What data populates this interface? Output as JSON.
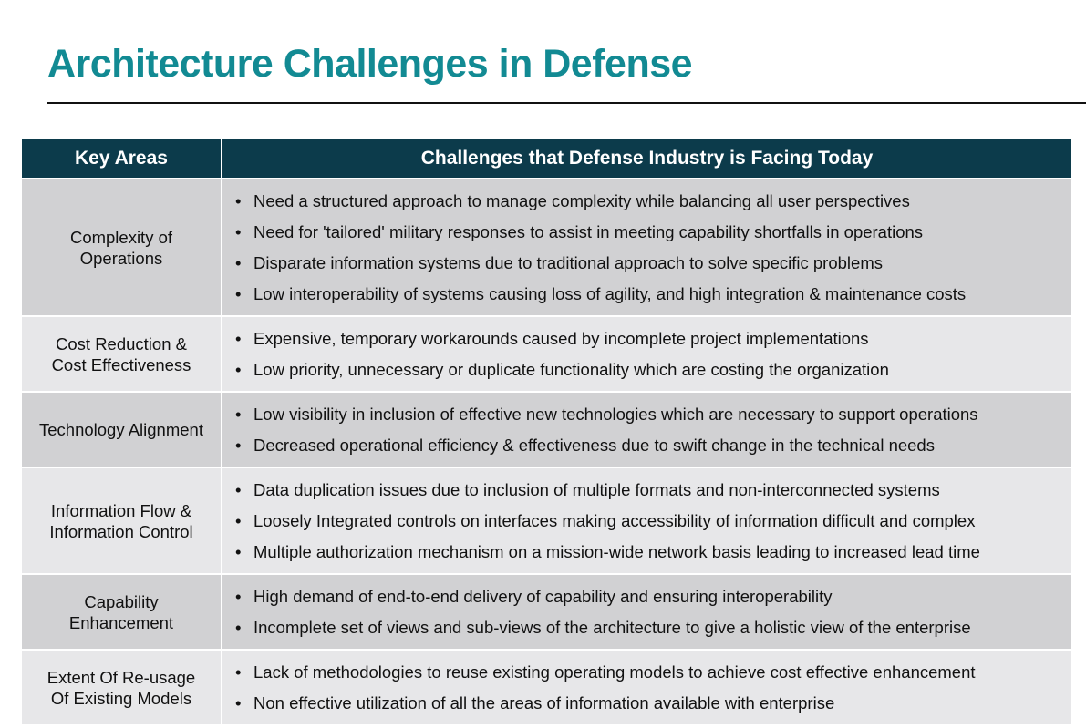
{
  "page": {
    "title": "Architecture Challenges in Defense"
  },
  "table": {
    "headers": {
      "key_areas": "Key Areas",
      "challenges": "Challenges that Defense Industry is Facing Today"
    },
    "rows": [
      {
        "area": "Complexity of Operations",
        "challenges": [
          "Need a structured approach to manage complexity while balancing all user perspectives",
          "Need for 'tailored' military responses to assist in meeting capability shortfalls in operations",
          "Disparate information systems due to traditional approach to solve specific problems",
          "Low interoperability of systems causing loss of agility, and high integration & maintenance costs"
        ]
      },
      {
        "area": "Cost Reduction & Cost Effectiveness",
        "challenges": [
          "Expensive, temporary workarounds caused by incomplete project implementations",
          "Low priority, unnecessary or duplicate functionality which are costing the organization"
        ]
      },
      {
        "area": "Technology Alignment",
        "challenges": [
          "Low visibility in inclusion of effective new technologies which are necessary to support operations",
          "Decreased operational efficiency & effectiveness due to swift change in the technical needs"
        ]
      },
      {
        "area": "Information Flow & Information Control",
        "challenges": [
          "Data duplication issues due to inclusion of multiple formats and non-interconnected systems",
          "Loosely Integrated controls on interfaces making accessibility of information difficult and complex",
          "Multiple authorization mechanism on a mission-wide network basis leading to increased lead time"
        ]
      },
      {
        "area": "Capability Enhancement",
        "challenges": [
          "High demand of end-to-end delivery of capability and ensuring interoperability",
          "Incomplete set of views and sub-views of the architecture to give a holistic view of the enterprise"
        ]
      },
      {
        "area": "Extent Of Re-usage Of Existing Models",
        "challenges": [
          "Lack of methodologies to reuse existing operating models to achieve cost effective enhancement",
          "Non effective utilization of all the areas of information available with enterprise"
        ]
      }
    ]
  }
}
